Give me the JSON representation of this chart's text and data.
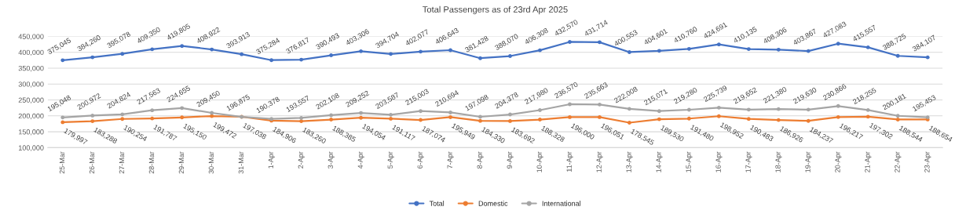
{
  "chart_data": {
    "type": "line",
    "title": "Total Passengers as of 23rd Apr 2025",
    "categories": [
      "25-Mar",
      "26-Mar",
      "27-Mar",
      "28-Mar",
      "29-Mar",
      "30-Mar",
      "31-Mar",
      "1-Apr",
      "2-Apr",
      "3-Apr",
      "4-Apr",
      "5-Apr",
      "6-Apr",
      "7-Apr",
      "8-Apr",
      "9-Apr",
      "10-Apr",
      "11-Apr",
      "12-Apr",
      "13-Apr",
      "14-Apr",
      "15-Apr",
      "16-Apr",
      "17-Apr",
      "18-Apr",
      "19-Apr",
      "20-Apr",
      "21-Apr",
      "22-Apr",
      "23-Apr"
    ],
    "series": [
      {
        "name": "Total",
        "color": "#4472c4",
        "values": [
          375045,
          384260,
          395078,
          409350,
          419805,
          408922,
          393913,
          375284,
          376817,
          390493,
          403306,
          394704,
          402077,
          406643,
          381428,
          388070,
          406308,
          432570,
          431714,
          400553,
          404601,
          410760,
          424691,
          410135,
          408306,
          403867,
          427083,
          415557,
          388725,
          384107
        ],
        "value_labels": [
          "375,045",
          "384,260",
          "395,078",
          "409,350",
          "419,805",
          "408,922",
          "393,913",
          "375,284",
          "376,817",
          "390,493",
          "403,306",
          "394,704",
          "402,077",
          "406,643",
          "381,428",
          "388,070",
          "406,308",
          "432,570",
          "431,714",
          "400,553",
          "404,601",
          "410,760",
          "424,691",
          "410,135",
          "408,306",
          "403,867",
          "427,083",
          "415,557",
          "388,725",
          "384,107"
        ]
      },
      {
        "name": "Domestic",
        "color": "#ed7d31",
        "values": [
          179997,
          183288,
          190254,
          191787,
          195150,
          199472,
          197038,
          184906,
          183260,
          188385,
          194054,
          191117,
          187074,
          195949,
          184330,
          183692,
          188328,
          196000,
          196051,
          178545,
          189530,
          191480,
          198952,
          190483,
          186926,
          184237,
          196217,
          197302,
          188544,
          188654
        ],
        "value_labels": [
          "179,997",
          "183,288",
          "190,254",
          "191,787",
          "195,150",
          "199,472",
          "197,038",
          "184,906",
          "183,260",
          "188,385",
          "194,054",
          "191,117",
          "187,074",
          "195,949",
          "184,330",
          "183,692",
          "188,328",
          "196,000",
          "196,051",
          "178,545",
          "189,530",
          "191,480",
          "198,952",
          "190,483",
          "186,926",
          "184,237",
          "196,217",
          "197,302",
          "188,544",
          "188,654"
        ]
      },
      {
        "name": "International",
        "color": "#a5a5a5",
        "values": [
          195048,
          200972,
          204824,
          217563,
          224655,
          209450,
          196875,
          190378,
          193557,
          202108,
          209252,
          203587,
          215003,
          210694,
          197098,
          204378,
          217980,
          236570,
          235663,
          222008,
          215071,
          219280,
          225739,
          219652,
          221380,
          219630,
          230866,
          218255,
          200181,
          195453
        ],
        "value_labels": [
          "195,048",
          "200,972",
          "204,824",
          "217,563",
          "224,655",
          "209,450",
          "196,875",
          "190,378",
          "193,557",
          "202,108",
          "209,252",
          "203,587",
          "215,003",
          "210,694",
          "197,098",
          "204,378",
          "217,980",
          "236,570",
          "235,663",
          "222,008",
          "215,071",
          "219,280",
          "225,739",
          "219,652",
          "221,380",
          "219,630",
          "230,866",
          "218,255",
          "200,181",
          "195,453"
        ]
      }
    ],
    "ylim": [
      100000,
      450000
    ],
    "yticks": [
      {
        "value": 100000,
        "label": "100,000"
      },
      {
        "value": 150000,
        "label": "150,000"
      },
      {
        "value": 200000,
        "label": "200,000"
      },
      {
        "value": 250000,
        "label": "250,000"
      },
      {
        "value": 300000,
        "label": "300,000"
      },
      {
        "value": 350000,
        "label": "350,000"
      },
      {
        "value": 400000,
        "label": "400,000"
      },
      {
        "value": 450000,
        "label": "450,000"
      }
    ],
    "grid": "y",
    "legend": "bottom",
    "marker": "circle",
    "line_style": "solid"
  }
}
